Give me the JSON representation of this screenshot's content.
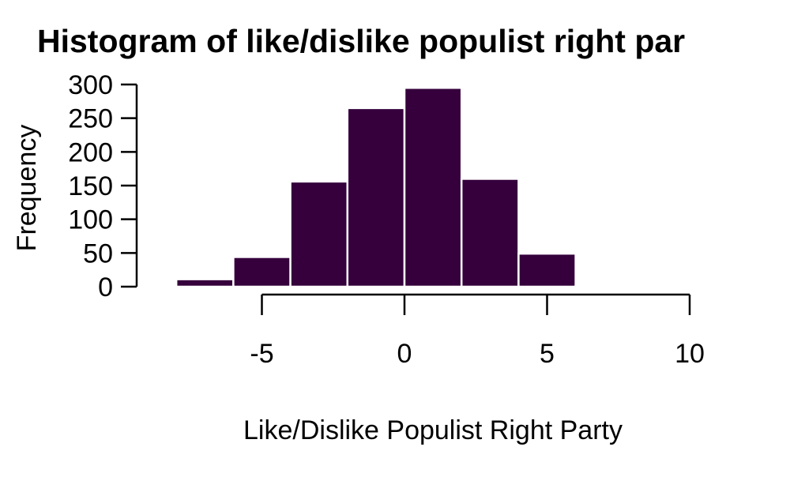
{
  "chart_data": {
    "type": "bar",
    "title": "Histogram of like/dislike populist right par",
    "xlabel": "Like/Dislike Populist Right Party",
    "ylabel": "Frequency",
    "bins": [
      {
        "start": -8,
        "end": -6,
        "count": 11
      },
      {
        "start": -6,
        "end": -4,
        "count": 44
      },
      {
        "start": -4,
        "end": -2,
        "count": 156
      },
      {
        "start": -2,
        "end": 0,
        "count": 265
      },
      {
        "start": 0,
        "end": 2,
        "count": 295
      },
      {
        "start": 2,
        "end": 4,
        "count": 160
      },
      {
        "start": 4,
        "end": 6,
        "count": 49
      },
      {
        "start": 6,
        "end": 8,
        "count": 1
      }
    ],
    "xlim": [
      -5,
      10
    ],
    "ylim": [
      0,
      300
    ],
    "x_ticks": [
      "-5",
      "0",
      "5",
      "10"
    ],
    "x_tick_values": [
      -5,
      0,
      5,
      10
    ],
    "y_ticks": [
      "0",
      "50",
      "100",
      "150",
      "200",
      "250",
      "300"
    ],
    "y_tick_values": [
      0,
      50,
      100,
      150,
      200,
      250,
      300
    ],
    "bar_color": "#35003c",
    "bar_edge_color": "#ffffff",
    "grid": false,
    "legend": false
  }
}
